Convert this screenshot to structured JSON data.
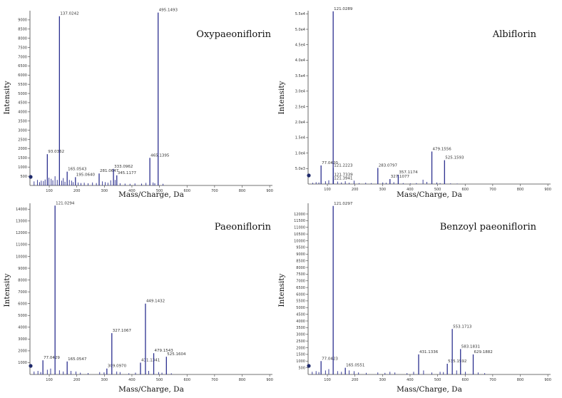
{
  "chart_data": [
    {
      "type": "bar",
      "title": "Oxypaeoniflorin",
      "xlabel": "Mass/Charge, Da",
      "ylabel": "Intensity",
      "xlim": [
        30,
        910
      ],
      "ylim": [
        0,
        9500
      ],
      "xticks": [
        100,
        200,
        300,
        400,
        500,
        600,
        700,
        800,
        900
      ],
      "yticks": [
        500,
        1000,
        1500,
        2000,
        2500,
        3000,
        3500,
        4000,
        4500,
        5000,
        5500,
        6000,
        6500,
        7000,
        7500,
        8000,
        8500,
        9000
      ],
      "ytick_labels": [
        "500",
        "1000",
        "1500",
        "2000",
        "2500",
        "3000",
        "3500",
        "4000",
        "4500",
        "5000",
        "5500",
        "6000",
        "6500",
        "7000",
        "7500",
        "8000",
        "8500",
        "9000"
      ],
      "labeled_peaks": [
        {
          "mz": 93.0362,
          "intensity": 1700,
          "label": "93.0362"
        },
        {
          "mz": 137.0242,
          "intensity": 9200,
          "label": "137.0242"
        },
        {
          "mz": 165.0543,
          "intensity": 750,
          "label": "165.0543"
        },
        {
          "mz": 195.064,
          "intensity": 450,
          "label": "195.0640"
        },
        {
          "mz": 281.0647,
          "intensity": 650,
          "label": "281.0647"
        },
        {
          "mz": 333.0962,
          "intensity": 900,
          "label": "333.0962"
        },
        {
          "mz": 345.1177,
          "intensity": 550,
          "label": "345.1177"
        },
        {
          "mz": 465.1395,
          "intensity": 1500,
          "label": "465.1395"
        },
        {
          "mz": 495.1493,
          "intensity": 9400,
          "label": "495.1493"
        }
      ],
      "minor_peaks": [
        {
          "mz": 45,
          "intensity": 220
        },
        {
          "mz": 57,
          "intensity": 300
        },
        {
          "mz": 65,
          "intensity": 180
        },
        {
          "mz": 71,
          "intensity": 260
        },
        {
          "mz": 79,
          "intensity": 240
        },
        {
          "mz": 85,
          "intensity": 320
        },
        {
          "mz": 99,
          "intensity": 420
        },
        {
          "mz": 107,
          "intensity": 360
        },
        {
          "mz": 113,
          "intensity": 280
        },
        {
          "mz": 121,
          "intensity": 500
        },
        {
          "mz": 129,
          "intensity": 300
        },
        {
          "mz": 145,
          "intensity": 260
        },
        {
          "mz": 151,
          "intensity": 400
        },
        {
          "mz": 157,
          "intensity": 200
        },
        {
          "mz": 173,
          "intensity": 300
        },
        {
          "mz": 181,
          "intensity": 260
        },
        {
          "mz": 187,
          "intensity": 180
        },
        {
          "mz": 205,
          "intensity": 160
        },
        {
          "mz": 215,
          "intensity": 130
        },
        {
          "mz": 227,
          "intensity": 150
        },
        {
          "mz": 241,
          "intensity": 120
        },
        {
          "mz": 257,
          "intensity": 160
        },
        {
          "mz": 271,
          "intensity": 130
        },
        {
          "mz": 293,
          "intensity": 220
        },
        {
          "mz": 303,
          "intensity": 180
        },
        {
          "mz": 313,
          "intensity": 150
        },
        {
          "mz": 323,
          "intensity": 280
        },
        {
          "mz": 339,
          "intensity": 300
        },
        {
          "mz": 357,
          "intensity": 120
        },
        {
          "mz": 375,
          "intensity": 100
        },
        {
          "mz": 393,
          "intensity": 90
        },
        {
          "mz": 411,
          "intensity": 110
        },
        {
          "mz": 435,
          "intensity": 100
        },
        {
          "mz": 451,
          "intensity": 140
        },
        {
          "mz": 477,
          "intensity": 160
        },
        {
          "mz": 483,
          "intensity": 120
        },
        {
          "mz": 513,
          "intensity": 90
        }
      ],
      "grid": false
    },
    {
      "type": "bar",
      "title": "Albiflorin",
      "xlabel": "Mass/Charge, Da",
      "ylabel": "Intensity",
      "xlim": [
        30,
        910
      ],
      "ylim": [
        0,
        56000
      ],
      "xticks": [
        100,
        200,
        300,
        400,
        500,
        600,
        700,
        800,
        900
      ],
      "yticks": [
        5000,
        10000,
        15000,
        20000,
        25000,
        30000,
        35000,
        40000,
        45000,
        50000,
        55000
      ],
      "ytick_labels": [
        "5.0e3",
        "1.0e4",
        "1.5e4",
        "2.0e4",
        "2.5e4",
        "3.0e4",
        "3.5e4",
        "4.0e4",
        "4.5e4",
        "5.0e4",
        "5.5e4"
      ],
      "labeled_peaks": [
        {
          "mz": 77.042,
          "intensity": 6000,
          "label": "77.0420"
        },
        {
          "mz": 121.0289,
          "intensity": 55800,
          "label": "121.0289"
        },
        {
          "mz": 121.2223,
          "intensity": 5200,
          "label": "121.2223"
        },
        {
          "mz": 121.7339,
          "intensity": 2200,
          "label": "121.7339"
        },
        {
          "mz": 121.3941,
          "intensity": 1000,
          "label": "121.3941"
        },
        {
          "mz": 283.0797,
          "intensity": 5200,
          "label": "283.0797"
        },
        {
          "mz": 327.1077,
          "intensity": 1600,
          "label": "327.1077"
        },
        {
          "mz": 357.1174,
          "intensity": 3000,
          "label": "357.1174"
        },
        {
          "mz": 479.1556,
          "intensity": 10500,
          "label": "479.1556"
        },
        {
          "mz": 525.1593,
          "intensity": 7700,
          "label": "525.1593"
        }
      ],
      "minor_peaks": [
        {
          "mz": 47,
          "intensity": 400
        },
        {
          "mz": 59,
          "intensity": 600
        },
        {
          "mz": 69,
          "intensity": 500
        },
        {
          "mz": 93,
          "intensity": 900
        },
        {
          "mz": 105,
          "intensity": 1200
        },
        {
          "mz": 137,
          "intensity": 800
        },
        {
          "mz": 151,
          "intensity": 500
        },
        {
          "mz": 165,
          "intensity": 900
        },
        {
          "mz": 179,
          "intensity": 400
        },
        {
          "mz": 197,
          "intensity": 1100
        },
        {
          "mz": 215,
          "intensity": 300
        },
        {
          "mz": 239,
          "intensity": 400
        },
        {
          "mz": 259,
          "intensity": 300
        },
        {
          "mz": 301,
          "intensity": 500
        },
        {
          "mz": 313,
          "intensity": 400
        },
        {
          "mz": 341,
          "intensity": 600
        },
        {
          "mz": 375,
          "intensity": 300
        },
        {
          "mz": 401,
          "intensity": 200
        },
        {
          "mz": 423,
          "intensity": 300
        },
        {
          "mz": 447,
          "intensity": 1400
        },
        {
          "mz": 461,
          "intensity": 700
        },
        {
          "mz": 497,
          "intensity": 500
        },
        {
          "mz": 509,
          "intensity": 300
        },
        {
          "mz": 547,
          "intensity": 200
        },
        {
          "mz": 571,
          "intensity": 150
        }
      ],
      "grid": false
    },
    {
      "type": "bar",
      "title": "Paeoniflorin",
      "xlabel": "Mass/Charge, Da",
      "ylabel": "Intensity",
      "xlim": [
        30,
        910
      ],
      "ylim": [
        0,
        14500
      ],
      "xticks": [
        100,
        200,
        300,
        400,
        500,
        600,
        700,
        800,
        900
      ],
      "yticks": [
        1000,
        2000,
        3000,
        4000,
        5000,
        6000,
        7000,
        8000,
        9000,
        10000,
        11000,
        12000,
        13000,
        14000
      ],
      "ytick_labels": [
        "1000",
        "2000",
        "3000",
        "4000",
        "5000",
        "6000",
        "7000",
        "8000",
        "9000",
        "10000",
        "11000",
        "12000",
        "13000",
        "14000"
      ],
      "labeled_peaks": [
        {
          "mz": 77.0429,
          "intensity": 1200,
          "label": "77.0429"
        },
        {
          "mz": 121.0294,
          "intensity": 14300,
          "label": "121.0294"
        },
        {
          "mz": 165.0547,
          "intensity": 1100,
          "label": "165.0547"
        },
        {
          "mz": 309.097,
          "intensity": 500,
          "label": "309.0970"
        },
        {
          "mz": 327.1067,
          "intensity": 3500,
          "label": "327.1067"
        },
        {
          "mz": 431.1341,
          "intensity": 1000,
          "label": "431.1341"
        },
        {
          "mz": 449.1432,
          "intensity": 6000,
          "label": "449.1432"
        },
        {
          "mz": 479.1543,
          "intensity": 1800,
          "label": "479.1543"
        },
        {
          "mz": 525.1604,
          "intensity": 1500,
          "label": "525.1604"
        }
      ],
      "minor_peaks": [
        {
          "mz": 45,
          "intensity": 250
        },
        {
          "mz": 59,
          "intensity": 300
        },
        {
          "mz": 69,
          "intensity": 200
        },
        {
          "mz": 93,
          "intensity": 400
        },
        {
          "mz": 105,
          "intensity": 500
        },
        {
          "mz": 137,
          "intensity": 350
        },
        {
          "mz": 151,
          "intensity": 250
        },
        {
          "mz": 179,
          "intensity": 300
        },
        {
          "mz": 197,
          "intensity": 250
        },
        {
          "mz": 213,
          "intensity": 150
        },
        {
          "mz": 241,
          "intensity": 120
        },
        {
          "mz": 283,
          "intensity": 200
        },
        {
          "mz": 299,
          "intensity": 180
        },
        {
          "mz": 345,
          "intensity": 250
        },
        {
          "mz": 357,
          "intensity": 200
        },
        {
          "mz": 389,
          "intensity": 100
        },
        {
          "mz": 413,
          "intensity": 150
        },
        {
          "mz": 461,
          "intensity": 300
        },
        {
          "mz": 497,
          "intensity": 200
        },
        {
          "mz": 509,
          "intensity": 150
        },
        {
          "mz": 543,
          "intensity": 100
        }
      ],
      "grid": false
    },
    {
      "type": "bar",
      "title": "Benzoyl paeoniflorin",
      "xlabel": "Mass/Charge, Da",
      "ylabel": "Intensity",
      "xlim": [
        30,
        910
      ],
      "ylim": [
        0,
        12800
      ],
      "xticks": [
        100,
        200,
        300,
        400,
        500,
        600,
        700,
        800,
        900
      ],
      "yticks": [
        500,
        1000,
        1500,
        2000,
        2500,
        3000,
        3500,
        4000,
        4500,
        5000,
        5500,
        6000,
        6500,
        7000,
        7500,
        8000,
        8500,
        9000,
        9500,
        10000,
        10500,
        11000,
        11500,
        12000
      ],
      "ytick_labels": [
        "500",
        "1000",
        "1500",
        "2000",
        "2500",
        "3000",
        "3500",
        "4000",
        "4500",
        "5000",
        "5500",
        "6000",
        "6500",
        "7000",
        "7500",
        "8000",
        "8500",
        "9000",
        "9500",
        "10000",
        "10500",
        "11000",
        "11500",
        "12000"
      ],
      "labeled_peaks": [
        {
          "mz": 77.0423,
          "intensity": 1000,
          "label": "77.0423"
        },
        {
          "mz": 121.0297,
          "intensity": 12600,
          "label": "121.0297"
        },
        {
          "mz": 165.0551,
          "intensity": 500,
          "label": "165.0551"
        },
        {
          "mz": 431.1336,
          "intensity": 1500,
          "label": "431.1336"
        },
        {
          "mz": 535.1592,
          "intensity": 800,
          "label": "535.1592"
        },
        {
          "mz": 553.1713,
          "intensity": 3400,
          "label": "553.1713"
        },
        {
          "mz": 583.1831,
          "intensity": 1900,
          "label": "583.1831"
        },
        {
          "mz": 629.1882,
          "intensity": 1500,
          "label": "629.1882"
        }
      ],
      "minor_peaks": [
        {
          "mz": 45,
          "intensity": 200
        },
        {
          "mz": 59,
          "intensity": 250
        },
        {
          "mz": 69,
          "intensity": 180
        },
        {
          "mz": 93,
          "intensity": 300
        },
        {
          "mz": 105,
          "intensity": 400
        },
        {
          "mz": 137,
          "intensity": 250
        },
        {
          "mz": 151,
          "intensity": 200
        },
        {
          "mz": 179,
          "intensity": 300
        },
        {
          "mz": 197,
          "intensity": 250
        },
        {
          "mz": 213,
          "intensity": 150
        },
        {
          "mz": 241,
          "intensity": 120
        },
        {
          "mz": 283,
          "intensity": 150
        },
        {
          "mz": 309,
          "intensity": 120
        },
        {
          "mz": 327,
          "intensity": 200
        },
        {
          "mz": 345,
          "intensity": 150
        },
        {
          "mz": 389,
          "intensity": 100
        },
        {
          "mz": 413,
          "intensity": 200
        },
        {
          "mz": 449,
          "intensity": 300
        },
        {
          "mz": 479,
          "intensity": 150
        },
        {
          "mz": 509,
          "intensity": 200
        },
        {
          "mz": 521,
          "intensity": 180
        },
        {
          "mz": 569,
          "intensity": 300
        },
        {
          "mz": 601,
          "intensity": 200
        },
        {
          "mz": 647,
          "intensity": 150
        },
        {
          "mz": 671,
          "intensity": 100
        }
      ],
      "grid": false
    }
  ],
  "colors": {
    "peak": "#2b2f8f",
    "axis": "#444444",
    "text": "#111111",
    "marker": "#1f2a6b"
  }
}
